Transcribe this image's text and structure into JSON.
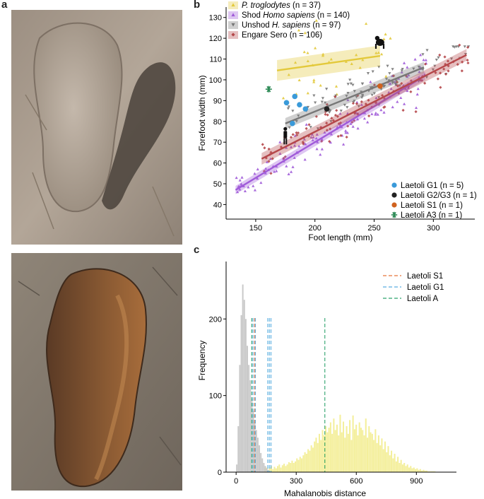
{
  "panel_labels": {
    "a": "a",
    "b": "b",
    "c": "c"
  },
  "photos": {
    "top": {
      "icon": "footprint-photo-sand"
    },
    "bottom": {
      "icon": "footprint-photo-rock"
    }
  },
  "colors": {
    "troglodytes": "#e3c93b",
    "shod": "#a05bd9",
    "unshod": "#777777",
    "engare": "#b5474a",
    "g1": "#3a9ad9",
    "g2g3": "#222222",
    "s1": "#d0621f",
    "a3": "#2e8b57",
    "hist_gray": "#c8c8c8",
    "hist_yellow": "#f4ef9c"
  },
  "chart_data": [
    {
      "type": "scatter",
      "xlabel": "Foot length (mm)",
      "ylabel": "Forefoot width (mm)",
      "xlim": [
        125,
        335
      ],
      "ylim": [
        33,
        135
      ],
      "xticks": [
        150,
        200,
        250,
        300
      ],
      "yticks": [
        40,
        50,
        60,
        70,
        80,
        90,
        100,
        110,
        120,
        130
      ],
      "legend_top": [
        {
          "pre": "",
          "italic": "P. troglodytes",
          "post": " (n = 37)",
          "key": "troglodytes",
          "marker": "triangle-up"
        },
        {
          "pre": "Shod ",
          "italic": "Homo sapiens",
          "post": " (n = 140)",
          "key": "shod",
          "marker": "triangle-up"
        },
        {
          "pre": "Unshod ",
          "italic": "H. sapiens",
          "post": " (n = 97)",
          "key": "unshod",
          "marker": "triangle-down"
        },
        {
          "pre": "Engare Sero ",
          "italic": "",
          "post": "(n = 106)",
          "key": "engare",
          "marker": "diamond"
        }
      ],
      "legend_bottom": [
        {
          "label": "Laetoli G1 (n = 5)",
          "key": "g1",
          "marker": "circle"
        },
        {
          "label": "Laetoli G2/G3 (n = 1)",
          "key": "g2g3",
          "marker": "circle"
        },
        {
          "label": "Laetoli S1 (n = 1)",
          "key": "s1",
          "marker": "circle"
        },
        {
          "label": "Laetoli A3 (n = 1)",
          "key": "a3",
          "marker": "asterisk"
        }
      ],
      "fits": [
        {
          "key": "troglodytes",
          "x": [
            168,
            255
          ],
          "y": [
            104.5,
            111.5
          ],
          "band": 5.0
        },
        {
          "key": "shod",
          "x": [
            133,
            293
          ],
          "y": [
            47,
            102
          ],
          "band": 2.0
        },
        {
          "key": "unshod",
          "x": [
            175,
            292
          ],
          "y": [
            79,
            106
          ],
          "band": 2.6
        },
        {
          "key": "engare",
          "x": [
            155,
            328
          ],
          "y": [
            62,
            112
          ],
          "band": 2.8
        }
      ],
      "laetoli": [
        {
          "key": "g1",
          "x": 176,
          "y": 89
        },
        {
          "key": "g1",
          "x": 183,
          "y": 92
        },
        {
          "key": "g1",
          "x": 187,
          "y": 88
        },
        {
          "key": "g1",
          "x": 192,
          "y": 86
        },
        {
          "key": "g1",
          "x": 181,
          "y": 79
        },
        {
          "key": "g2g3",
          "x": 210,
          "y": 86
        },
        {
          "key": "s1",
          "x": 255,
          "y": 97
        },
        {
          "key": "a3",
          "x": 161,
          "y": 95.5
        }
      ],
      "clouds": [
        {
          "key": "troglodytes",
          "marker": "triangle-up",
          "n": 37,
          "xmin": 165,
          "xmax": 270,
          "ymin": 90,
          "ymax": 133,
          "a": 92,
          "b": 0.08,
          "spread": 13
        },
        {
          "key": "shod",
          "marker": "triangle-up",
          "n": 140,
          "xmin": 133,
          "xmax": 295,
          "ymin": 37,
          "ymax": 112,
          "a": 2.0,
          "b": 0.343,
          "spread": 8
        },
        {
          "key": "unshod",
          "marker": "triangle-down",
          "n": 97,
          "xmin": 175,
          "xmax": 330,
          "ymin": 72,
          "ymax": 116,
          "a": 38,
          "b": 0.235,
          "spread": 7
        },
        {
          "key": "engare",
          "marker": "diamond",
          "n": 106,
          "xmin": 155,
          "xmax": 330,
          "ymin": 55,
          "ymax": 122,
          "a": 17.0,
          "b": 0.289,
          "spread": 8
        }
      ]
    },
    {
      "type": "bar",
      "xlabel": "Mahalanobis distance",
      "ylabel": "Frequency",
      "xlim": [
        -50,
        1100
      ],
      "ylim": [
        0,
        275
      ],
      "xticks": [
        0,
        300,
        600,
        900
      ],
      "yticks": [
        0,
        100,
        200
      ],
      "legend": [
        {
          "label": "Laetoli S1",
          "color": "#e8743b"
        },
        {
          "label": "Laetoli G1",
          "color": "#5aaee0"
        },
        {
          "label": "Laetoli A",
          "color": "#2ea36e"
        }
      ],
      "vlines": [
        {
          "x": 78,
          "color": "#2ea36e"
        },
        {
          "x": 84,
          "color": "#5aaee0"
        },
        {
          "x": 92,
          "color": "#e8743b"
        },
        {
          "x": 96,
          "color": "#5aaee0"
        },
        {
          "x": 158,
          "color": "#5aaee0"
        },
        {
          "x": 166,
          "color": "#5aaee0"
        },
        {
          "x": 174,
          "color": "#5aaee0"
        },
        {
          "x": 443,
          "color": "#2ea36e"
        }
      ],
      "gray_bins": {
        "start": 0,
        "width": 7.5,
        "values": [
          10,
          60,
          140,
          205,
          245,
          225,
          200,
          165,
          140,
          120,
          95,
          80,
          65,
          55,
          45,
          35,
          25,
          18,
          12,
          8,
          5,
          3
        ]
      },
      "yellow_bins": {
        "start": 140,
        "width": 8,
        "values": [
          5,
          6,
          3,
          6,
          8,
          4,
          7,
          5,
          8,
          10,
          6,
          9,
          11,
          8,
          10,
          13,
          12,
          15,
          12,
          14,
          18,
          16,
          20,
          18,
          22,
          26,
          24,
          30,
          28,
          35,
          32,
          40,
          45,
          38,
          50,
          42,
          55,
          48,
          60,
          52,
          58,
          65,
          50,
          70,
          55,
          62,
          48,
          75,
          52,
          66,
          45,
          60,
          50,
          68,
          42,
          74,
          56,
          62,
          48,
          65,
          58,
          55,
          48,
          70,
          45,
          60,
          52,
          50,
          42,
          56,
          38,
          48,
          35,
          44,
          30,
          40,
          26,
          34,
          22,
          28,
          18,
          24,
          14,
          20,
          12,
          16,
          10,
          12,
          8,
          10,
          6,
          8,
          5,
          6,
          4,
          5,
          3,
          4,
          2,
          3,
          2,
          2,
          1,
          1,
          1,
          1,
          1
        ]
      }
    }
  ]
}
